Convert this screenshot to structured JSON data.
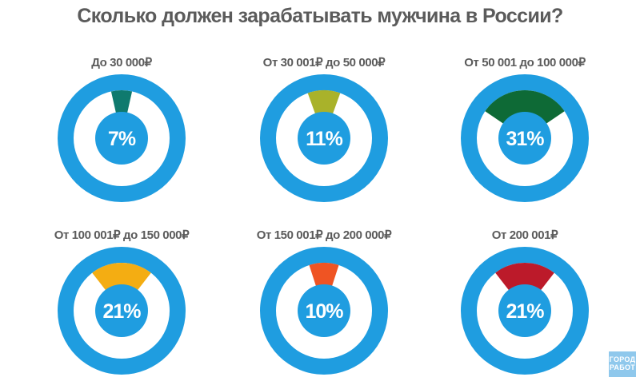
{
  "chart_data": {
    "type": "pie",
    "title": "Сколько должен зарабатывать мужчина в России?",
    "unit": "%",
    "ring_color": "#1f9de0",
    "center_color": "#1f9de0",
    "label_color": "#5b5b5b",
    "value_label_color": "#ffffff",
    "slices": [
      {
        "label": "До 30 000₽",
        "value": 7,
        "value_label": "7%",
        "color": "#0f7a6e"
      },
      {
        "label": "От 30 001₽ до 50 000₽",
        "value": 11,
        "value_label": "11%",
        "color": "#a9b22a"
      },
      {
        "label": "От 50 001 до 100 000₽",
        "value": 31,
        "value_label": "31%",
        "color": "#0e6a36"
      },
      {
        "label": "От 100 001₽ до 150 000₽",
        "value": 21,
        "value_label": "21%",
        "color": "#f4ad12"
      },
      {
        "label": "От 150 001₽ до 200 000₽",
        "value": 10,
        "value_label": "10%",
        "color": "#ef5423"
      },
      {
        "label": "От 200 001₽",
        "value": 21,
        "value_label": "21%",
        "color": "#bc1a2a"
      }
    ]
  },
  "logo": {
    "line1": "ГОРОД",
    "line2": "РАБОТ",
    "background": "#8fc8ec"
  }
}
